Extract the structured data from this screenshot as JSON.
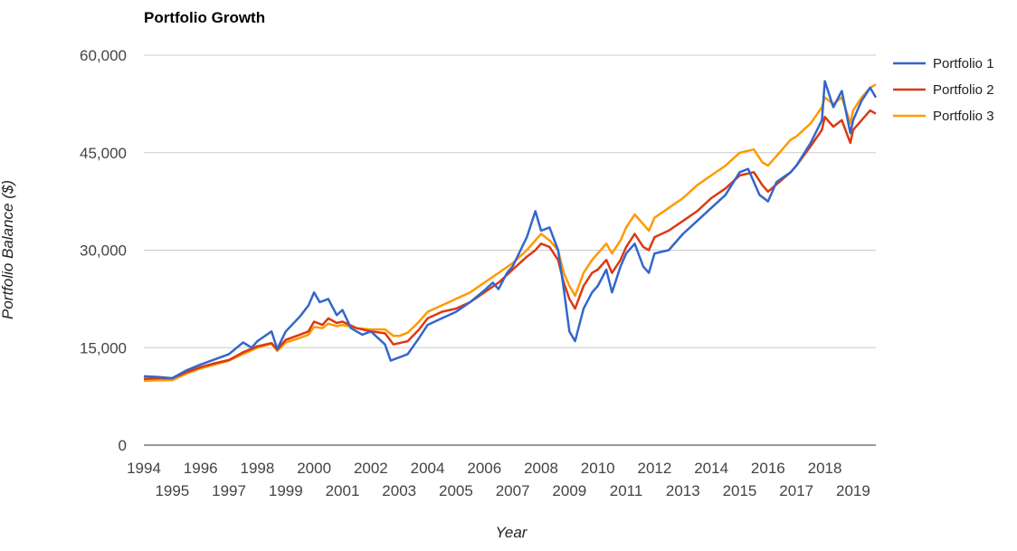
{
  "chart_data": {
    "type": "line",
    "title": "Portfolio Growth",
    "xlabel": "Year",
    "ylabel": "Portfolio Balance ($)",
    "xlim": [
      1994,
      2019.8
    ],
    "ylim": [
      0,
      60000
    ],
    "y_ticks": [
      0,
      15000,
      30000,
      45000,
      60000
    ],
    "y_tick_labels": [
      "0",
      "15,000",
      "30,000",
      "45,000",
      "60,000"
    ],
    "x_tick_labels": [
      "1994",
      "1995",
      "1996",
      "1997",
      "1998",
      "1999",
      "2000",
      "2001",
      "2002",
      "2003",
      "2004",
      "2005",
      "2006",
      "2007",
      "2008",
      "2009",
      "2010",
      "2011",
      "2012",
      "2013",
      "2014",
      "2015",
      "2016",
      "2017",
      "2018",
      "2019"
    ],
    "grid": true,
    "legend_position": "right",
    "series": [
      {
        "name": "Portfolio 1",
        "color": "#3366cc",
        "points": [
          [
            1994.0,
            10600
          ],
          [
            1994.5,
            10500
          ],
          [
            1995.0,
            10300
          ],
          [
            1995.5,
            11500
          ],
          [
            1996.0,
            12400
          ],
          [
            1996.5,
            13200
          ],
          [
            1997.0,
            14000
          ],
          [
            1997.5,
            15800
          ],
          [
            1997.8,
            15000
          ],
          [
            1998.0,
            16000
          ],
          [
            1998.5,
            17500
          ],
          [
            1998.7,
            14800
          ],
          [
            1999.0,
            17500
          ],
          [
            1999.5,
            19800
          ],
          [
            1999.8,
            21500
          ],
          [
            2000.0,
            23500
          ],
          [
            2000.2,
            22000
          ],
          [
            2000.5,
            22500
          ],
          [
            2000.8,
            20000
          ],
          [
            2001.0,
            20800
          ],
          [
            2001.3,
            18000
          ],
          [
            2001.7,
            17000
          ],
          [
            2002.0,
            17500
          ],
          [
            2002.5,
            15500
          ],
          [
            2002.7,
            13000
          ],
          [
            2003.0,
            13500
          ],
          [
            2003.3,
            14000
          ],
          [
            2003.7,
            16500
          ],
          [
            2004.0,
            18500
          ],
          [
            2004.5,
            19500
          ],
          [
            2005.0,
            20500
          ],
          [
            2005.5,
            22000
          ],
          [
            2006.0,
            23800
          ],
          [
            2006.3,
            25000
          ],
          [
            2006.5,
            24000
          ],
          [
            2006.8,
            26500
          ],
          [
            2007.0,
            27500
          ],
          [
            2007.5,
            32000
          ],
          [
            2007.8,
            36000
          ],
          [
            2008.0,
            33000
          ],
          [
            2008.3,
            33500
          ],
          [
            2008.6,
            30000
          ],
          [
            2008.8,
            24000
          ],
          [
            2009.0,
            17500
          ],
          [
            2009.2,
            16000
          ],
          [
            2009.5,
            21000
          ],
          [
            2009.8,
            23500
          ],
          [
            2010.0,
            24500
          ],
          [
            2010.3,
            27000
          ],
          [
            2010.5,
            23500
          ],
          [
            2010.8,
            27500
          ],
          [
            2011.0,
            29500
          ],
          [
            2011.3,
            31000
          ],
          [
            2011.6,
            27500
          ],
          [
            2011.8,
            26500
          ],
          [
            2012.0,
            29500
          ],
          [
            2012.5,
            30000
          ],
          [
            2013.0,
            32500
          ],
          [
            2013.5,
            34500
          ],
          [
            2014.0,
            36500
          ],
          [
            2014.5,
            38500
          ],
          [
            2015.0,
            42000
          ],
          [
            2015.3,
            42500
          ],
          [
            2015.7,
            38500
          ],
          [
            2016.0,
            37500
          ],
          [
            2016.3,
            40500
          ],
          [
            2016.8,
            42000
          ],
          [
            2017.0,
            43000
          ],
          [
            2017.5,
            46500
          ],
          [
            2017.9,
            50000
          ],
          [
            2018.0,
            56000
          ],
          [
            2018.3,
            52000
          ],
          [
            2018.6,
            54500
          ],
          [
            2018.9,
            48000
          ],
          [
            2019.0,
            50000
          ],
          [
            2019.3,
            53000
          ],
          [
            2019.6,
            55000
          ],
          [
            2019.8,
            53500
          ]
        ]
      },
      {
        "name": "Portfolio 2",
        "color": "#dc3912",
        "points": [
          [
            1994.0,
            10200
          ],
          [
            1994.5,
            10300
          ],
          [
            1995.0,
            10300
          ],
          [
            1995.5,
            11200
          ],
          [
            1996.0,
            12000
          ],
          [
            1996.5,
            12600
          ],
          [
            1997.0,
            13100
          ],
          [
            1997.5,
            14300
          ],
          [
            1998.0,
            15200
          ],
          [
            1998.5,
            15700
          ],
          [
            1998.7,
            14700
          ],
          [
            1999.0,
            16200
          ],
          [
            1999.5,
            17000
          ],
          [
            1999.8,
            17500
          ],
          [
            2000.0,
            19000
          ],
          [
            2000.3,
            18500
          ],
          [
            2000.5,
            19500
          ],
          [
            2000.8,
            18800
          ],
          [
            2001.0,
            19000
          ],
          [
            2001.5,
            18000
          ],
          [
            2002.0,
            17500
          ],
          [
            2002.5,
            17200
          ],
          [
            2002.8,
            15500
          ],
          [
            2003.0,
            15700
          ],
          [
            2003.3,
            16000
          ],
          [
            2003.7,
            17800
          ],
          [
            2004.0,
            19500
          ],
          [
            2004.5,
            20500
          ],
          [
            2005.0,
            21000
          ],
          [
            2005.5,
            22000
          ],
          [
            2006.0,
            23500
          ],
          [
            2006.5,
            25000
          ],
          [
            2007.0,
            27000
          ],
          [
            2007.5,
            29000
          ],
          [
            2007.8,
            30000
          ],
          [
            2008.0,
            31000
          ],
          [
            2008.3,
            30500
          ],
          [
            2008.6,
            28500
          ],
          [
            2008.8,
            25000
          ],
          [
            2009.0,
            22500
          ],
          [
            2009.2,
            21000
          ],
          [
            2009.5,
            24500
          ],
          [
            2009.8,
            26500
          ],
          [
            2010.0,
            27000
          ],
          [
            2010.3,
            28500
          ],
          [
            2010.5,
            26500
          ],
          [
            2010.8,
            28500
          ],
          [
            2011.0,
            30500
          ],
          [
            2011.3,
            32500
          ],
          [
            2011.6,
            30500
          ],
          [
            2011.8,
            30000
          ],
          [
            2012.0,
            32000
          ],
          [
            2012.5,
            33000
          ],
          [
            2013.0,
            34500
          ],
          [
            2013.5,
            36000
          ],
          [
            2014.0,
            38000
          ],
          [
            2014.5,
            39500
          ],
          [
            2015.0,
            41500
          ],
          [
            2015.5,
            42000
          ],
          [
            2015.8,
            40000
          ],
          [
            2016.0,
            39000
          ],
          [
            2016.4,
            40500
          ],
          [
            2016.8,
            42000
          ],
          [
            2017.0,
            43000
          ],
          [
            2017.5,
            46000
          ],
          [
            2017.9,
            48500
          ],
          [
            2018.0,
            50500
          ],
          [
            2018.3,
            49000
          ],
          [
            2018.6,
            50000
          ],
          [
            2018.9,
            46500
          ],
          [
            2019.0,
            48500
          ],
          [
            2019.3,
            50000
          ],
          [
            2019.6,
            51500
          ],
          [
            2019.8,
            51000
          ]
        ]
      },
      {
        "name": "Portfolio 3",
        "color": "#ff9900",
        "points": [
          [
            1994.0,
            9900
          ],
          [
            1994.5,
            10000
          ],
          [
            1995.0,
            10000
          ],
          [
            1995.5,
            11000
          ],
          [
            1996.0,
            11800
          ],
          [
            1996.5,
            12400
          ],
          [
            1997.0,
            13000
          ],
          [
            1997.5,
            14000
          ],
          [
            1998.0,
            15000
          ],
          [
            1998.5,
            15600
          ],
          [
            1998.7,
            14500
          ],
          [
            1999.0,
            15800
          ],
          [
            1999.5,
            16500
          ],
          [
            1999.8,
            17000
          ],
          [
            2000.0,
            18200
          ],
          [
            2000.3,
            18000
          ],
          [
            2000.5,
            18700
          ],
          [
            2000.8,
            18300
          ],
          [
            2001.0,
            18500
          ],
          [
            2001.5,
            18000
          ],
          [
            2002.0,
            17800
          ],
          [
            2002.5,
            17800
          ],
          [
            2002.8,
            16800
          ],
          [
            2003.0,
            16800
          ],
          [
            2003.3,
            17300
          ],
          [
            2003.7,
            19000
          ],
          [
            2004.0,
            20500
          ],
          [
            2004.5,
            21500
          ],
          [
            2005.0,
            22500
          ],
          [
            2005.5,
            23500
          ],
          [
            2006.0,
            25000
          ],
          [
            2006.5,
            26500
          ],
          [
            2007.0,
            28000
          ],
          [
            2007.5,
            30000
          ],
          [
            2007.8,
            31500
          ],
          [
            2008.0,
            32500
          ],
          [
            2008.3,
            31500
          ],
          [
            2008.6,
            30000
          ],
          [
            2008.8,
            26500
          ],
          [
            2009.0,
            24500
          ],
          [
            2009.2,
            23000
          ],
          [
            2009.5,
            26500
          ],
          [
            2009.8,
            28500
          ],
          [
            2010.0,
            29500
          ],
          [
            2010.3,
            31000
          ],
          [
            2010.5,
            29500
          ],
          [
            2010.8,
            31500
          ],
          [
            2011.0,
            33500
          ],
          [
            2011.3,
            35500
          ],
          [
            2011.6,
            34000
          ],
          [
            2011.8,
            33000
          ],
          [
            2012.0,
            35000
          ],
          [
            2012.5,
            36500
          ],
          [
            2013.0,
            38000
          ],
          [
            2013.5,
            40000
          ],
          [
            2014.0,
            41500
          ],
          [
            2014.5,
            43000
          ],
          [
            2015.0,
            45000
          ],
          [
            2015.5,
            45500
          ],
          [
            2015.8,
            43500
          ],
          [
            2016.0,
            43000
          ],
          [
            2016.4,
            45000
          ],
          [
            2016.8,
            47000
          ],
          [
            2017.0,
            47500
          ],
          [
            2017.5,
            49500
          ],
          [
            2017.9,
            52000
          ],
          [
            2018.0,
            53500
          ],
          [
            2018.3,
            52500
          ],
          [
            2018.6,
            53500
          ],
          [
            2018.9,
            49500
          ],
          [
            2019.0,
            51500
          ],
          [
            2019.3,
            53500
          ],
          [
            2019.6,
            55000
          ],
          [
            2019.8,
            55500
          ]
        ]
      }
    ]
  }
}
